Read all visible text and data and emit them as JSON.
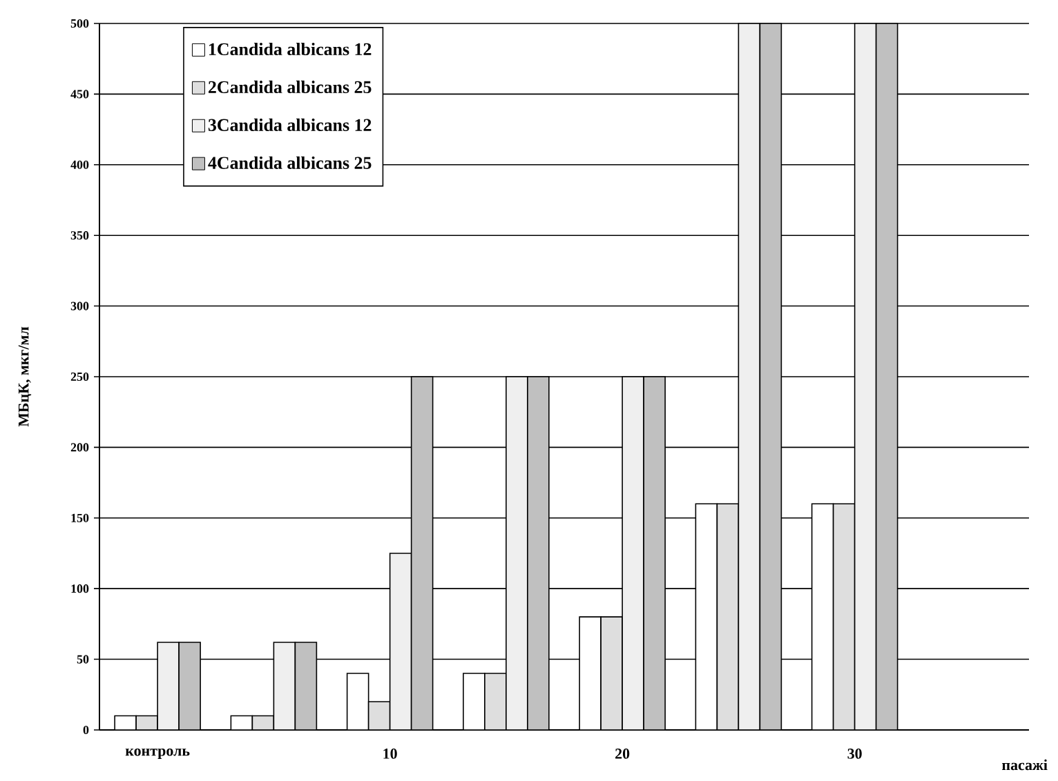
{
  "chart_data": {
    "type": "bar",
    "xlabel": "пасажі",
    "ylabel": "МБцК, мкг/мл",
    "categories": [
      "контроль",
      null,
      "10",
      null,
      "20",
      null,
      "30",
      null
    ],
    "series": [
      {
        "name": "1Candida albicans 12",
        "color": "#ffffff",
        "values": [
          10,
          10,
          40,
          40,
          80,
          160,
          160,
          null
        ]
      },
      {
        "name": "2Candida albicans 25",
        "color": "#dedede",
        "values": [
          10,
          10,
          20,
          40,
          80,
          160,
          160,
          null
        ]
      },
      {
        "name": "3Candida albicans 12",
        "color": "#efefef",
        "values": [
          62,
          62,
          125,
          250,
          250,
          500,
          500,
          null
        ]
      },
      {
        "name": "4Candida albicans 25",
        "color": "#c0c0c0",
        "values": [
          62,
          62,
          250,
          250,
          250,
          500,
          500,
          null
        ]
      }
    ],
    "ylim": [
      0,
      500
    ],
    "yticks": [
      0,
      50,
      100,
      150,
      200,
      250,
      300,
      350,
      400,
      450,
      500
    ],
    "grid": "y",
    "legend": "top left"
  }
}
